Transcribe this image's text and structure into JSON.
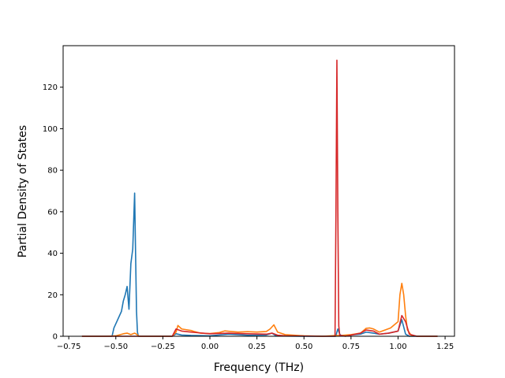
{
  "chart_data": {
    "type": "line",
    "title": "",
    "xlabel": "Frequency (THz)",
    "ylabel": "Partial Density of States",
    "xlim": [
      -0.78,
      1.3
    ],
    "ylim": [
      0,
      140
    ],
    "xticks": [
      -0.75,
      -0.5,
      -0.25,
      0.0,
      0.25,
      0.5,
      0.75,
      1.0,
      1.25
    ],
    "xtick_labels": [
      "−0.75",
      "−0.50",
      "−0.25",
      "0.00",
      "0.25",
      "0.50",
      "0.75",
      "1.00",
      "1.25"
    ],
    "yticks": [
      0,
      20,
      40,
      60,
      80,
      100,
      120
    ],
    "ytick_labels": [
      "0",
      "20",
      "40",
      "60",
      "80",
      "100",
      "120"
    ],
    "grid": false,
    "legend": "none",
    "series": [
      {
        "color": "#1f77b4",
        "x": [
          -0.68,
          -0.52,
          -0.51,
          -0.49,
          -0.47,
          -0.46,
          -0.45,
          -0.44,
          -0.43,
          -0.42,
          -0.41,
          -0.4,
          -0.395,
          -0.39,
          -0.385,
          -0.38,
          -0.375,
          -0.37,
          -0.35,
          -0.2,
          -0.18,
          -0.15,
          -0.1,
          0.0,
          0.1,
          0.2,
          0.3,
          0.33,
          0.35,
          0.4,
          0.5,
          0.6,
          0.66,
          0.67,
          0.675,
          0.68,
          0.69,
          0.7,
          0.8,
          0.83,
          0.87,
          0.9,
          0.95,
          1.0,
          1.02,
          1.04,
          1.06,
          1.1,
          1.21
        ],
        "y": [
          0,
          0,
          4,
          8,
          12,
          17,
          20,
          24,
          13,
          35,
          42,
          69,
          40,
          12,
          2,
          0,
          0,
          0,
          0,
          0,
          1.2,
          0.6,
          0.4,
          0.2,
          1.0,
          0.5,
          0.6,
          1.5,
          0.3,
          0.1,
          0,
          0,
          0,
          0,
          2,
          3.5,
          1.0,
          0.2,
          1.0,
          2.0,
          1.5,
          1.0,
          1.5,
          2.5,
          8,
          1,
          0,
          0,
          0
        ]
      },
      {
        "color": "#ff7f0e",
        "x": [
          -0.68,
          -0.55,
          -0.5,
          -0.46,
          -0.44,
          -0.42,
          -0.4,
          -0.39,
          -0.38,
          -0.37,
          -0.2,
          -0.18,
          -0.17,
          -0.15,
          -0.1,
          -0.08,
          -0.05,
          0.0,
          0.05,
          0.08,
          0.1,
          0.15,
          0.2,
          0.25,
          0.3,
          0.32,
          0.34,
          0.36,
          0.4,
          0.5,
          0.6,
          0.66,
          0.7,
          0.75,
          0.8,
          0.83,
          0.85,
          0.87,
          0.9,
          0.93,
          0.96,
          1.0,
          1.01,
          1.02,
          1.03,
          1.04,
          1.05,
          1.07,
          1.1,
          1.21
        ],
        "y": [
          0,
          0,
          0.2,
          1.2,
          1.5,
          0.8,
          1.5,
          1.0,
          0.2,
          0,
          0,
          2.0,
          5.2,
          3.5,
          2.8,
          2.2,
          1.5,
          1.3,
          1.8,
          2.6,
          2.4,
          2.0,
          2.2,
          2.0,
          2.3,
          3.5,
          5.5,
          2.0,
          0.8,
          0.2,
          0,
          0.3,
          0.4,
          0.8,
          1.5,
          3.8,
          4.0,
          3.5,
          2.0,
          3.0,
          4.0,
          7.0,
          20,
          25.5,
          20,
          10,
          3,
          0.5,
          0,
          0
        ]
      },
      {
        "color": "#d62728",
        "x": [
          -0.68,
          -0.2,
          -0.18,
          -0.15,
          -0.1,
          0.0,
          0.1,
          0.2,
          0.3,
          0.33,
          0.36,
          0.4,
          0.6,
          0.665,
          0.67,
          0.675,
          0.68,
          0.685,
          0.69,
          0.72,
          0.8,
          0.83,
          0.87,
          0.9,
          0.95,
          1.0,
          1.02,
          1.04,
          1.06,
          1.1,
          1.21
        ],
        "y": [
          0,
          0,
          3.5,
          2.5,
          2.0,
          1.2,
          1.5,
          1.2,
          1.0,
          1.5,
          0.5,
          0.2,
          0,
          0,
          60,
          133,
          60,
          5,
          0.5,
          0,
          1.5,
          3.0,
          2.5,
          1.0,
          1.5,
          2.5,
          10,
          7,
          1,
          0,
          0
        ]
      }
    ]
  }
}
